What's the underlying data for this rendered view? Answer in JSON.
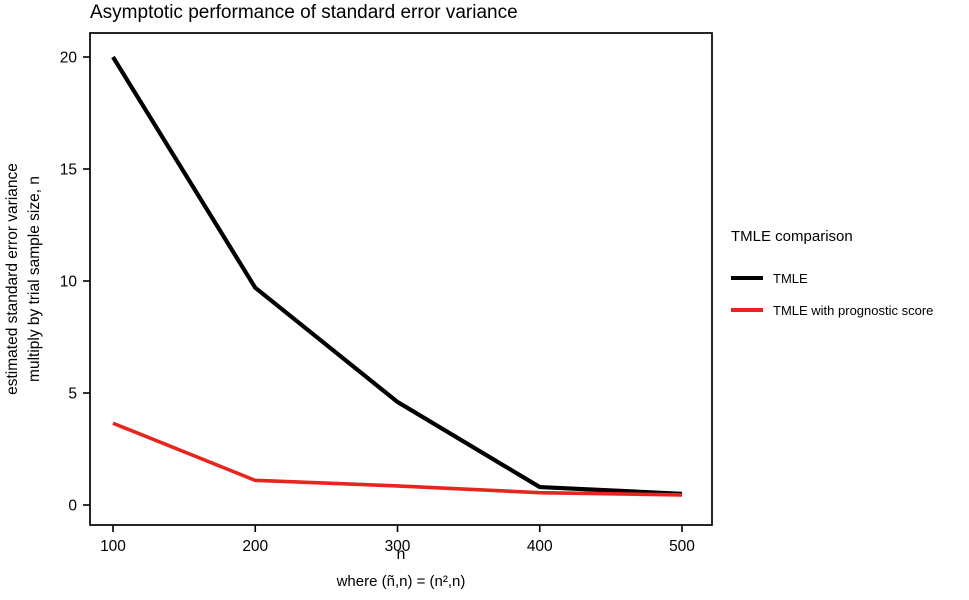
{
  "chart_data": {
    "type": "line",
    "title": "Asymptotic performance of standard error variance",
    "xlabel": "n",
    "ylabel_line1": "estimated standard error variance",
    "ylabel_line2": "multiply by trial sample size, n",
    "caption": "where (ñ,n) = (n²,n)",
    "x": [
      100,
      200,
      300,
      400,
      500
    ],
    "xlim": [
      100,
      500
    ],
    "ylim": [
      0,
      20
    ],
    "xticks": [
      100,
      200,
      300,
      400,
      500
    ],
    "yticks": [
      0,
      5,
      10,
      15,
      20
    ],
    "grid": false,
    "legend": {
      "title": "TMLE comparison",
      "position": "right"
    },
    "series": [
      {
        "name": "TMLE",
        "color": "#000000",
        "line_width": 4.2,
        "values": [
          20,
          9.7,
          4.6,
          0.8,
          0.5
        ]
      },
      {
        "name": "TMLE with prognostic score",
        "color": "#e8251c",
        "line_width": 3.6,
        "values": [
          3.65,
          1.1,
          0.85,
          0.55,
          0.45
        ]
      }
    ]
  }
}
